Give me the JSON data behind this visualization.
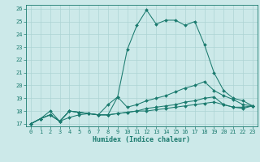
{
  "title": "",
  "xlabel": "Humidex (Indice chaleur)",
  "ylabel": "",
  "xlim": [
    -0.5,
    23.5
  ],
  "ylim": [
    16.8,
    26.3
  ],
  "xticks": [
    0,
    1,
    2,
    3,
    4,
    5,
    6,
    7,
    8,
    9,
    10,
    11,
    12,
    13,
    14,
    15,
    16,
    17,
    18,
    19,
    20,
    21,
    22,
    23
  ],
  "yticks": [
    17,
    18,
    19,
    20,
    21,
    22,
    23,
    24,
    25,
    26
  ],
  "bg_color": "#cce9e9",
  "line_color": "#1a7a6e",
  "grid_color": "#add4d4",
  "series": [
    [
      17.0,
      17.4,
      17.7,
      17.2,
      18.0,
      17.9,
      17.8,
      17.7,
      18.5,
      19.1,
      18.3,
      18.5,
      18.8,
      19.0,
      19.2,
      19.5,
      19.8,
      20.0,
      20.3,
      19.6,
      19.2,
      18.9,
      18.5,
      18.4
    ],
    [
      17.0,
      17.4,
      18.0,
      17.2,
      18.0,
      17.9,
      17.8,
      17.7,
      17.7,
      17.8,
      17.9,
      18.0,
      18.2,
      18.3,
      18.4,
      18.5,
      18.7,
      18.8,
      19.0,
      19.1,
      18.5,
      18.3,
      18.3,
      18.4
    ],
    [
      17.0,
      17.4,
      17.7,
      17.2,
      17.5,
      17.7,
      17.8,
      17.7,
      17.7,
      17.8,
      17.9,
      18.0,
      18.0,
      18.1,
      18.2,
      18.3,
      18.4,
      18.5,
      18.6,
      18.7,
      18.5,
      18.3,
      18.2,
      18.4
    ],
    [
      17.0,
      17.4,
      17.7,
      17.2,
      18.0,
      17.9,
      17.8,
      17.7,
      17.7,
      19.1,
      22.8,
      24.7,
      25.9,
      24.8,
      25.1,
      25.1,
      24.7,
      25.0,
      23.2,
      21.0,
      19.6,
      19.0,
      18.8,
      18.4
    ]
  ]
}
